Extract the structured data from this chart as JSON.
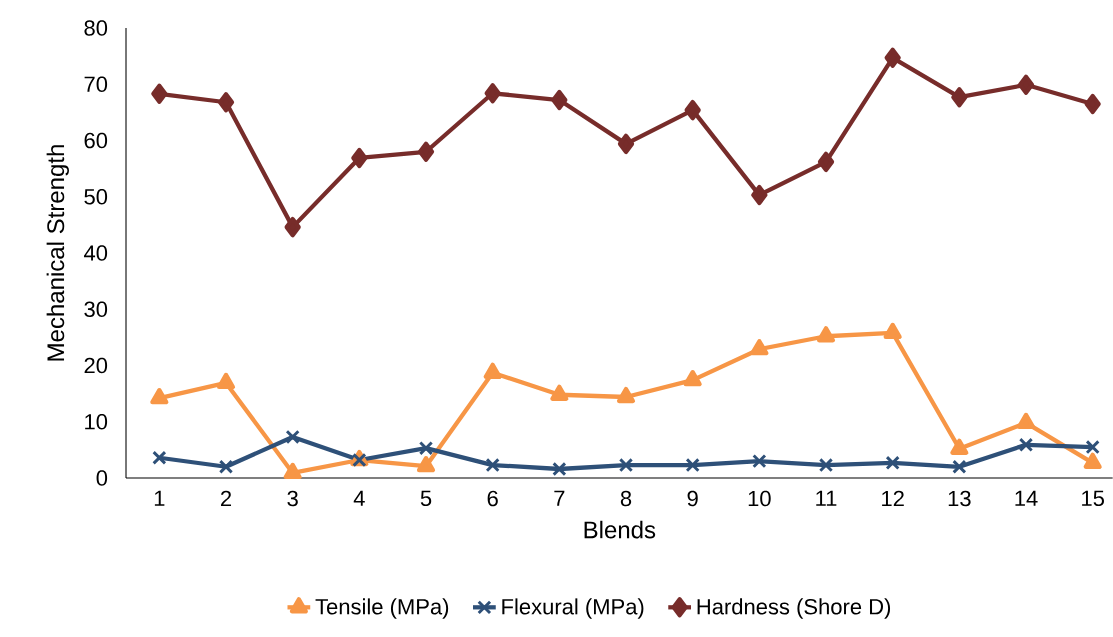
{
  "chart_data": {
    "type": "line",
    "xlabel": "Blends",
    "ylabel": "Mechanical Strength",
    "categories": [
      "1",
      "2",
      "3",
      "4",
      "5",
      "6",
      "7",
      "8",
      "9",
      "10",
      "11",
      "12",
      "13",
      "14",
      "15"
    ],
    "series": [
      {
        "name": "Tensile (MPa)",
        "color": "#f79646",
        "marker": "triangle",
        "values": [
          14.2,
          16.9,
          0.9,
          3.2,
          2.1,
          18.7,
          14.8,
          14.4,
          17.4,
          22.9,
          25.2,
          25.8,
          5.2,
          9.8,
          2.7
        ]
      },
      {
        "name": "Flexural (MPa)",
        "color": "#2e5078",
        "marker": "cross",
        "values": [
          3.6,
          2.0,
          7.3,
          3.2,
          5.3,
          2.3,
          1.6,
          2.3,
          2.3,
          3.0,
          2.3,
          2.7,
          2.0,
          5.9,
          5.5
        ]
      },
      {
        "name": "Hardness (Shore D)",
        "color": "#772c2a",
        "marker": "diamond",
        "values": [
          68.3,
          66.8,
          44.6,
          56.9,
          58.0,
          68.4,
          67.2,
          59.4,
          65.4,
          50.3,
          56.2,
          74.7,
          67.7,
          69.9,
          66.5
        ]
      }
    ],
    "ylim": [
      0,
      80
    ],
    "yticks": [
      0,
      10,
      20,
      30,
      40,
      50,
      60,
      70,
      80
    ],
    "grid": false,
    "legend": "bottom"
  }
}
